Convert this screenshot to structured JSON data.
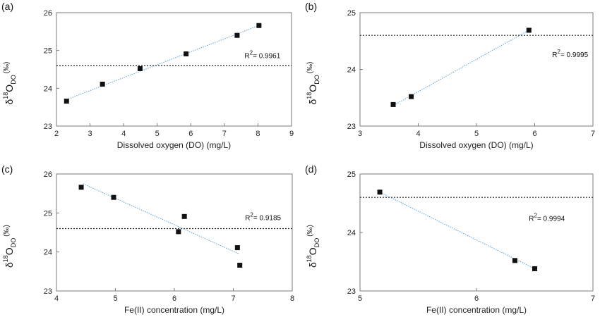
{
  "colors": {
    "axis": "#7a7a7a",
    "marker": "#111111",
    "trendline": "#5aa0d8",
    "reference_line": "#222222"
  },
  "chart_data": [
    {
      "type": "scatter",
      "panel_label": "(a)",
      "xlabel": "Dissolved oxygen (DO) (mg/L)",
      "ylabel": {
        "symbol": "δ",
        "sup": "18",
        "main": "O",
        "sub": "DO",
        "unit": "(‰)"
      },
      "xlim": [
        2,
        9
      ],
      "ylim": [
        23,
        26
      ],
      "xticks": [
        2,
        3,
        4,
        5,
        6,
        7,
        8,
        9
      ],
      "yticks": [
        23,
        24,
        25,
        26
      ],
      "points": [
        {
          "x": 2.3,
          "y": 23.66
        },
        {
          "x": 3.37,
          "y": 24.11
        },
        {
          "x": 4.49,
          "y": 24.52
        },
        {
          "x": 5.86,
          "y": 24.91
        },
        {
          "x": 7.38,
          "y": 25.4
        },
        {
          "x": 8.03,
          "y": 25.66
        }
      ],
      "trendline": {
        "x": [
          2.3,
          8.0
        ],
        "y": [
          23.7,
          25.65
        ]
      },
      "reference_y": 24.6,
      "r2": {
        "prefix": "R",
        "sup": "2",
        "value": "= 0.9961",
        "anchor_x": 7.6,
        "anchor_y": 24.8
      },
      "grid": false
    },
    {
      "type": "scatter",
      "panel_label": "(b)",
      "xlabel": "Dissolved oxygen (DO) (mg/L)",
      "ylabel": {
        "symbol": "δ",
        "sup": "18",
        "main": "O",
        "sub": "DO",
        "unit": "(‰)"
      },
      "xlim": [
        3,
        7
      ],
      "ylim": [
        23,
        25
      ],
      "xticks": [
        3,
        4,
        5,
        6,
        7
      ],
      "yticks": [
        23,
        24,
        25
      ],
      "points": [
        {
          "x": 3.57,
          "y": 23.38
        },
        {
          "x": 3.88,
          "y": 23.52
        },
        {
          "x": 5.9,
          "y": 24.69
        }
      ],
      "trendline": {
        "x": [
          3.55,
          5.95
        ],
        "y": [
          23.35,
          24.72
        ]
      },
      "reference_y": 24.6,
      "r2": {
        "prefix": "R",
        "sup": "2",
        "value": "= 0.9995",
        "anchor_x": 6.3,
        "anchor_y": 24.22
      },
      "grid": false
    },
    {
      "type": "scatter",
      "panel_label": "(c)",
      "xlabel": "Fe(II) concentration (mg/L)",
      "ylabel": {
        "symbol": "δ",
        "sup": "18",
        "main": "O",
        "sub": "DO",
        "unit": "(‰)"
      },
      "xlim": [
        4,
        8
      ],
      "ylim": [
        23,
        26
      ],
      "xticks": [
        4,
        5,
        6,
        7,
        8
      ],
      "yticks": [
        23,
        24,
        25,
        26
      ],
      "points": [
        {
          "x": 4.42,
          "y": 25.66
        },
        {
          "x": 4.97,
          "y": 25.4
        },
        {
          "x": 6.17,
          "y": 24.91
        },
        {
          "x": 6.07,
          "y": 24.52
        },
        {
          "x": 7.07,
          "y": 24.11
        },
        {
          "x": 7.11,
          "y": 23.66
        }
      ],
      "trendline": {
        "x": [
          4.45,
          7.1
        ],
        "y": [
          25.75,
          23.95
        ]
      },
      "reference_y": 24.6,
      "r2": {
        "prefix": "R",
        "sup": "2",
        "value": "= 0.9185",
        "anchor_x": 7.2,
        "anchor_y": 24.82
      },
      "grid": false
    },
    {
      "type": "scatter",
      "panel_label": "(d)",
      "xlabel": "Fe(II) concentration (mg/L)",
      "ylabel": {
        "symbol": "δ",
        "sup": "18",
        "main": "O",
        "sub": "DO",
        "unit": "(‰)"
      },
      "xlim": [
        5,
        7
      ],
      "ylim": [
        23,
        25
      ],
      "xticks": [
        5,
        6,
        7
      ],
      "yticks": [
        23,
        24,
        25
      ],
      "points": [
        {
          "x": 5.17,
          "y": 24.69
        },
        {
          "x": 6.33,
          "y": 23.52
        },
        {
          "x": 6.5,
          "y": 23.38
        }
      ],
      "trendline": {
        "x": [
          5.17,
          6.5
        ],
        "y": [
          24.69,
          23.38
        ]
      },
      "reference_y": 24.6,
      "r2": {
        "prefix": "R",
        "sup": "2",
        "value": "= 0.9994",
        "anchor_x": 6.45,
        "anchor_y": 24.2
      },
      "grid": false
    }
  ]
}
